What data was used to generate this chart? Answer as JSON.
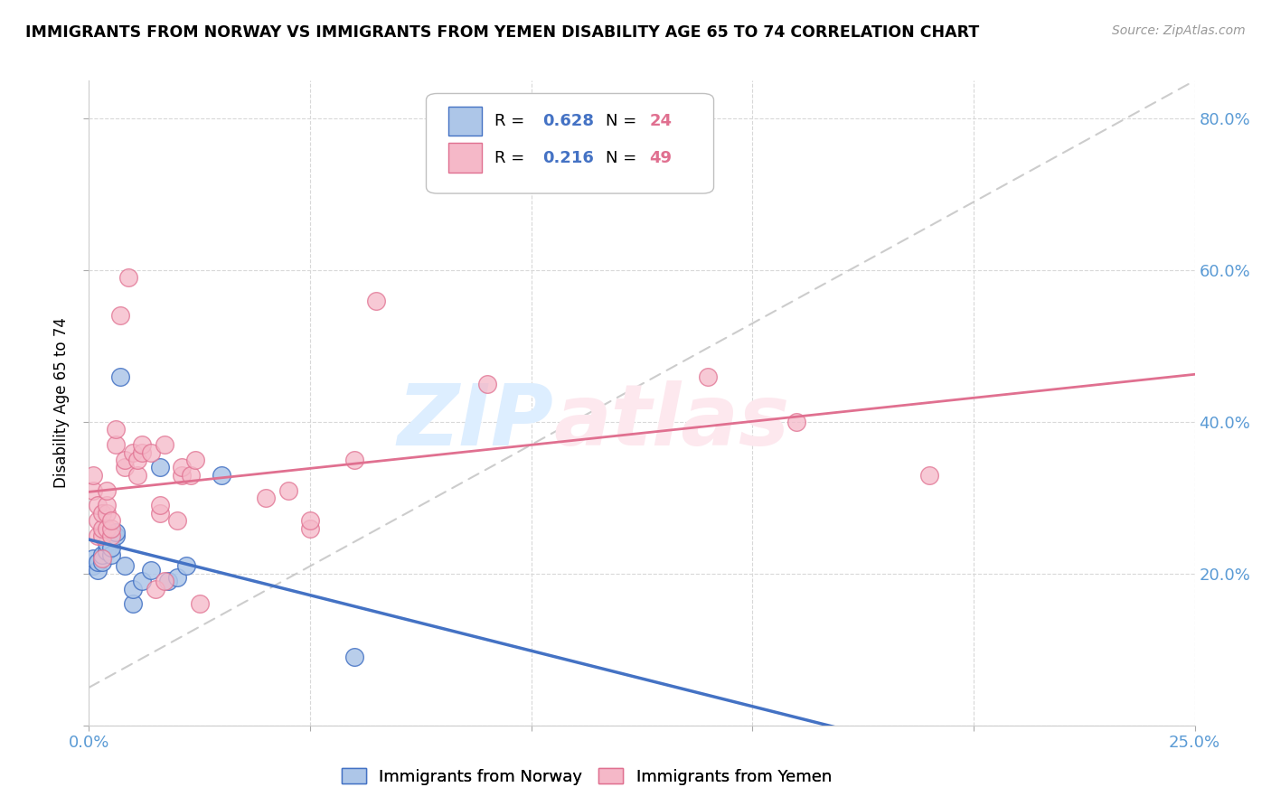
{
  "title": "IMMIGRANTS FROM NORWAY VS IMMIGRANTS FROM YEMEN DISABILITY AGE 65 TO 74 CORRELATION CHART",
  "source": "Source: ZipAtlas.com",
  "ylabel": "Disability Age 65 to 74",
  "xlim": [
    0.0,
    0.25
  ],
  "ylim": [
    0.0,
    0.85
  ],
  "norway_color": "#adc6e8",
  "yemen_color": "#f5b8c8",
  "norway_R": 0.628,
  "norway_N": 24,
  "yemen_R": 0.216,
  "yemen_N": 49,
  "norway_scatter_x": [
    0.001,
    0.001,
    0.002,
    0.002,
    0.003,
    0.003,
    0.004,
    0.004,
    0.005,
    0.005,
    0.006,
    0.006,
    0.007,
    0.008,
    0.01,
    0.01,
    0.012,
    0.014,
    0.016,
    0.018,
    0.02,
    0.022,
    0.03,
    0.06
  ],
  "norway_scatter_y": [
    0.21,
    0.22,
    0.205,
    0.215,
    0.215,
    0.225,
    0.23,
    0.24,
    0.225,
    0.235,
    0.25,
    0.255,
    0.46,
    0.21,
    0.16,
    0.18,
    0.19,
    0.205,
    0.34,
    0.19,
    0.195,
    0.21,
    0.33,
    0.09
  ],
  "yemen_scatter_x": [
    0.001,
    0.001,
    0.002,
    0.002,
    0.002,
    0.003,
    0.003,
    0.003,
    0.003,
    0.004,
    0.004,
    0.004,
    0.004,
    0.005,
    0.005,
    0.005,
    0.006,
    0.006,
    0.007,
    0.008,
    0.008,
    0.009,
    0.01,
    0.011,
    0.011,
    0.012,
    0.012,
    0.014,
    0.015,
    0.016,
    0.016,
    0.017,
    0.017,
    0.02,
    0.021,
    0.021,
    0.023,
    0.024,
    0.025,
    0.04,
    0.045,
    0.05,
    0.05,
    0.06,
    0.065,
    0.09,
    0.14,
    0.16,
    0.19
  ],
  "yemen_scatter_y": [
    0.31,
    0.33,
    0.25,
    0.27,
    0.29,
    0.22,
    0.25,
    0.26,
    0.28,
    0.26,
    0.28,
    0.29,
    0.31,
    0.25,
    0.26,
    0.27,
    0.37,
    0.39,
    0.54,
    0.34,
    0.35,
    0.59,
    0.36,
    0.33,
    0.35,
    0.36,
    0.37,
    0.36,
    0.18,
    0.28,
    0.29,
    0.19,
    0.37,
    0.27,
    0.33,
    0.34,
    0.33,
    0.35,
    0.16,
    0.3,
    0.31,
    0.26,
    0.27,
    0.35,
    0.56,
    0.45,
    0.46,
    0.4,
    0.33
  ],
  "norway_line_color": "#4472c4",
  "yemen_line_color": "#e07090",
  "diag_line_color": "#c0c0c0",
  "grid_color": "#d8d8d8",
  "axis_color": "#5b9bd5",
  "watermark_zip_color": "#ddeeff",
  "watermark_atlas_color": "#fde8ee"
}
